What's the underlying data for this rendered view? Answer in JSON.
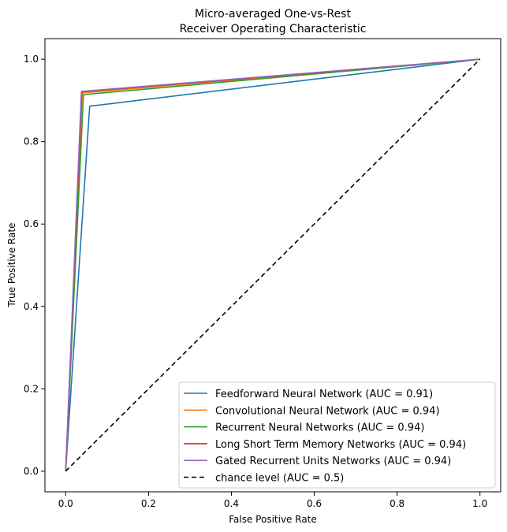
{
  "chart_data": {
    "type": "line",
    "title": [
      "Micro-averaged One-vs-Rest",
      "Receiver Operating Characteristic"
    ],
    "xlabel": "False Positive Rate",
    "ylabel": "True Positive Rate",
    "xlim": [
      -0.05,
      1.05
    ],
    "ylim": [
      -0.05,
      1.05
    ],
    "xticks": [
      0.0,
      0.2,
      0.4,
      0.6,
      0.8,
      1.0
    ],
    "yticks": [
      0.0,
      0.2,
      0.4,
      0.6,
      0.8,
      1.0
    ],
    "xtick_labels": [
      "0.0",
      "0.2",
      "0.4",
      "0.6",
      "0.8",
      "1.0"
    ],
    "ytick_labels": [
      "0.0",
      "0.2",
      "0.4",
      "0.6",
      "0.8",
      "1.0"
    ],
    "grid": false,
    "legend_position": "lower-right",
    "series": [
      {
        "name": "Feedforward Neural Network (AUC = 0.91)",
        "color": "#1f77b4",
        "dash": "solid",
        "x": [
          0.0,
          0.058,
          1.0
        ],
        "y": [
          0.0,
          0.886,
          1.0
        ]
      },
      {
        "name": "Convolutional Neural Network (AUC = 0.94)",
        "color": "#ff7f0e",
        "dash": "solid",
        "x": [
          0.0,
          0.04,
          1.0
        ],
        "y": [
          0.0,
          0.918,
          1.0
        ]
      },
      {
        "name": "Recurrent Neural Networks (AUC = 0.94)",
        "color": "#2ca02c",
        "dash": "solid",
        "x": [
          0.0,
          0.043,
          1.0
        ],
        "y": [
          0.0,
          0.914,
          1.0
        ]
      },
      {
        "name": "Long Short Term Memory Networks (AUC = 0.94)",
        "color": "#d62728",
        "dash": "solid",
        "x": [
          0.0,
          0.039,
          1.0
        ],
        "y": [
          0.0,
          0.921,
          1.0
        ]
      },
      {
        "name": "Gated Recurrent Units Networks (AUC = 0.94)",
        "color": "#9467bd",
        "dash": "solid",
        "x": [
          0.0,
          0.038,
          1.0
        ],
        "y": [
          0.0,
          0.922,
          1.0
        ]
      },
      {
        "name": "chance level (AUC = 0.5)",
        "color": "#000000",
        "dash": "dashed",
        "x": [
          0.0,
          1.0
        ],
        "y": [
          0.0,
          1.0
        ]
      }
    ]
  }
}
